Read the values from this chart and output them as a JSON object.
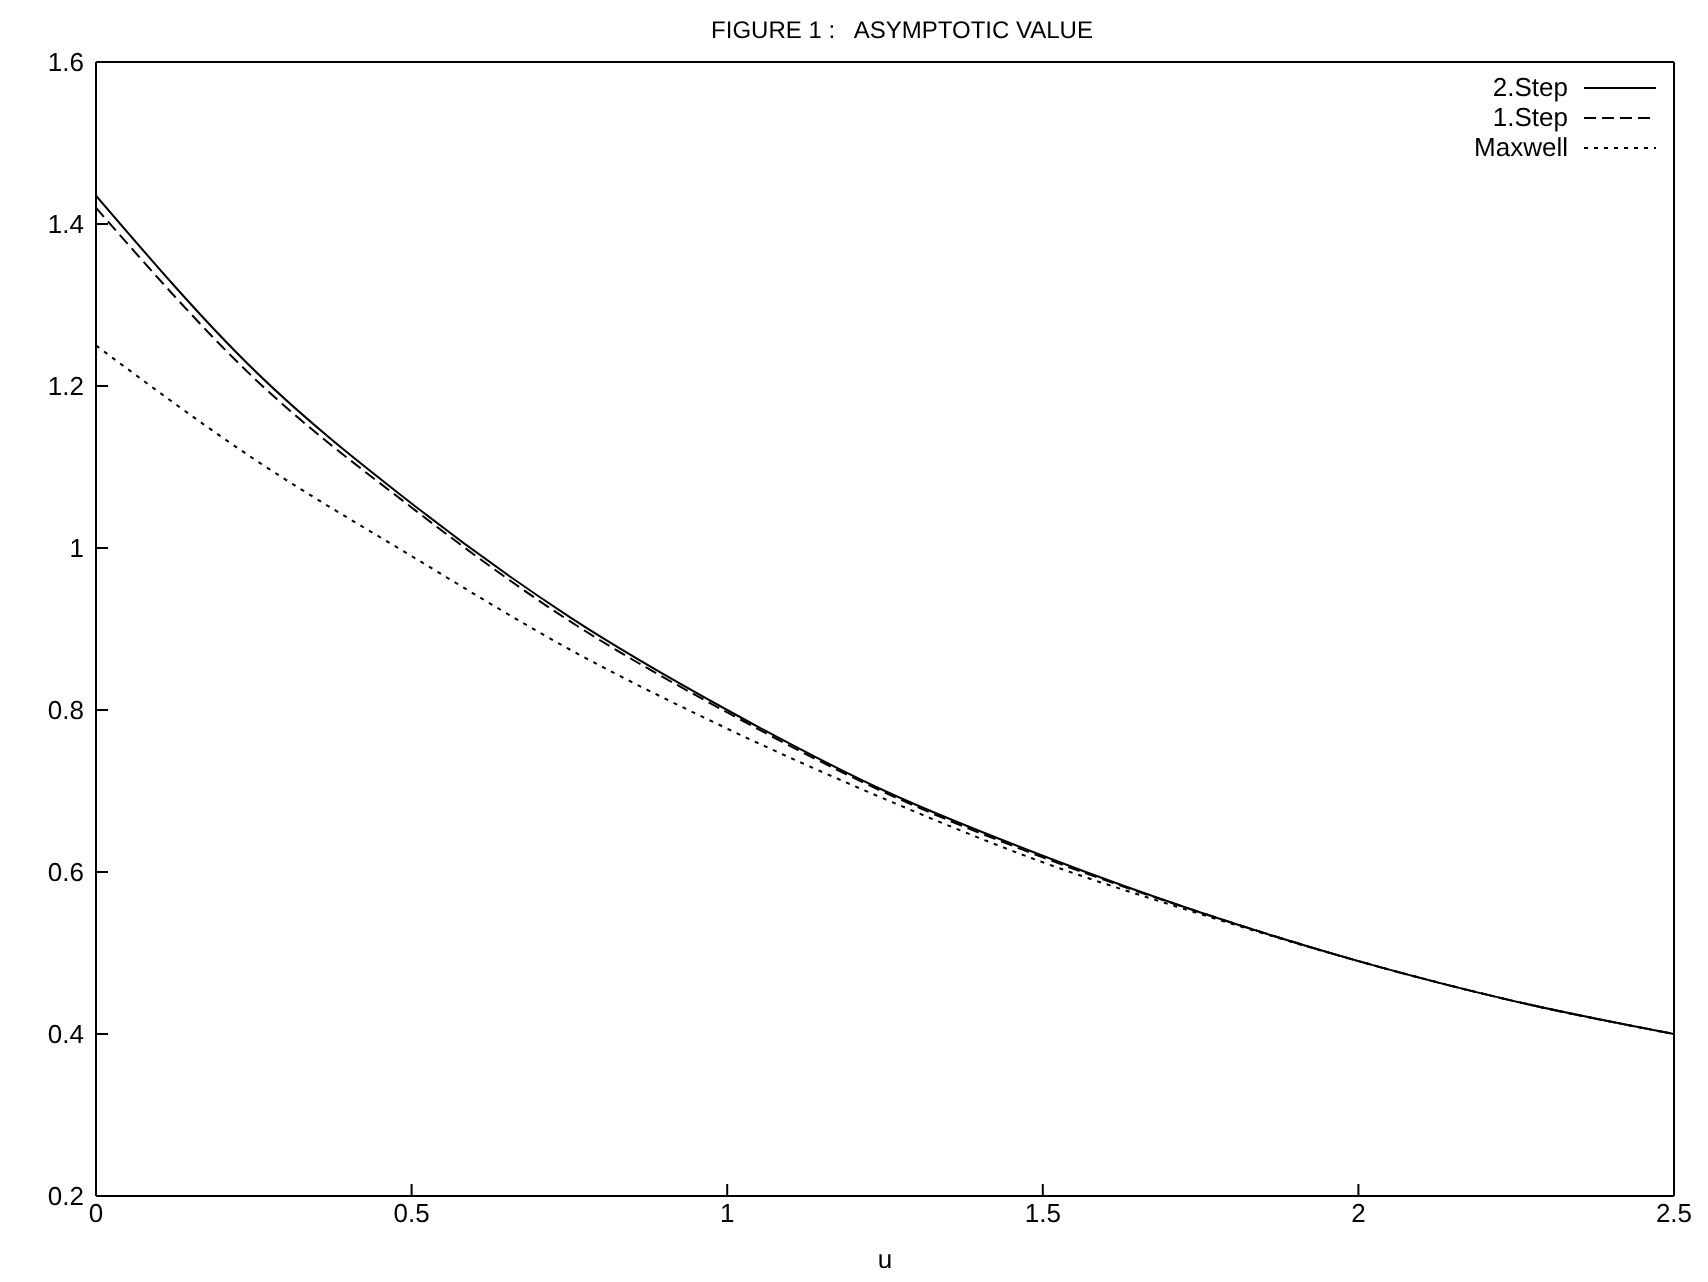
{
  "chart_data": {
    "type": "line",
    "title": "FIGURE 1 :   ASYMPTOTIC VALUE",
    "xlabel": "u",
    "x": [
      0,
      0.25,
      0.5,
      0.75,
      1,
      1.25,
      1.5,
      1.75,
      2,
      2.25,
      2.5
    ],
    "series": [
      {
        "name": "2.Step",
        "color": "#000000",
        "line_style": "solid",
        "values": [
          1.435,
          1.22,
          1.055,
          0.915,
          0.8,
          0.7,
          0.62,
          0.55,
          0.49,
          0.44,
          0.4
        ]
      },
      {
        "name": "1.Step",
        "color": "#000000",
        "line_style": "dashed",
        "values": [
          1.42,
          1.21,
          1.05,
          0.91,
          0.797,
          0.698,
          0.618,
          0.55,
          0.49,
          0.44,
          0.4
        ]
      },
      {
        "name": "Maxwell",
        "color": "#000000",
        "line_style": "dotted",
        "values": [
          1.25,
          1.11,
          0.99,
          0.875,
          0.777,
          0.69,
          0.612,
          0.548,
          0.49,
          0.44,
          0.4
        ]
      }
    ],
    "xlim": [
      0,
      2.5
    ],
    "xticks": [
      0,
      0.5,
      1,
      1.5,
      2,
      2.5
    ],
    "ylim": [
      0.2,
      1.6
    ],
    "yticks": [
      0.2,
      0.4,
      0.6,
      0.8,
      1,
      1.2,
      1.4,
      1.6
    ],
    "grid": false,
    "legend": "top right",
    "marker": "none"
  }
}
